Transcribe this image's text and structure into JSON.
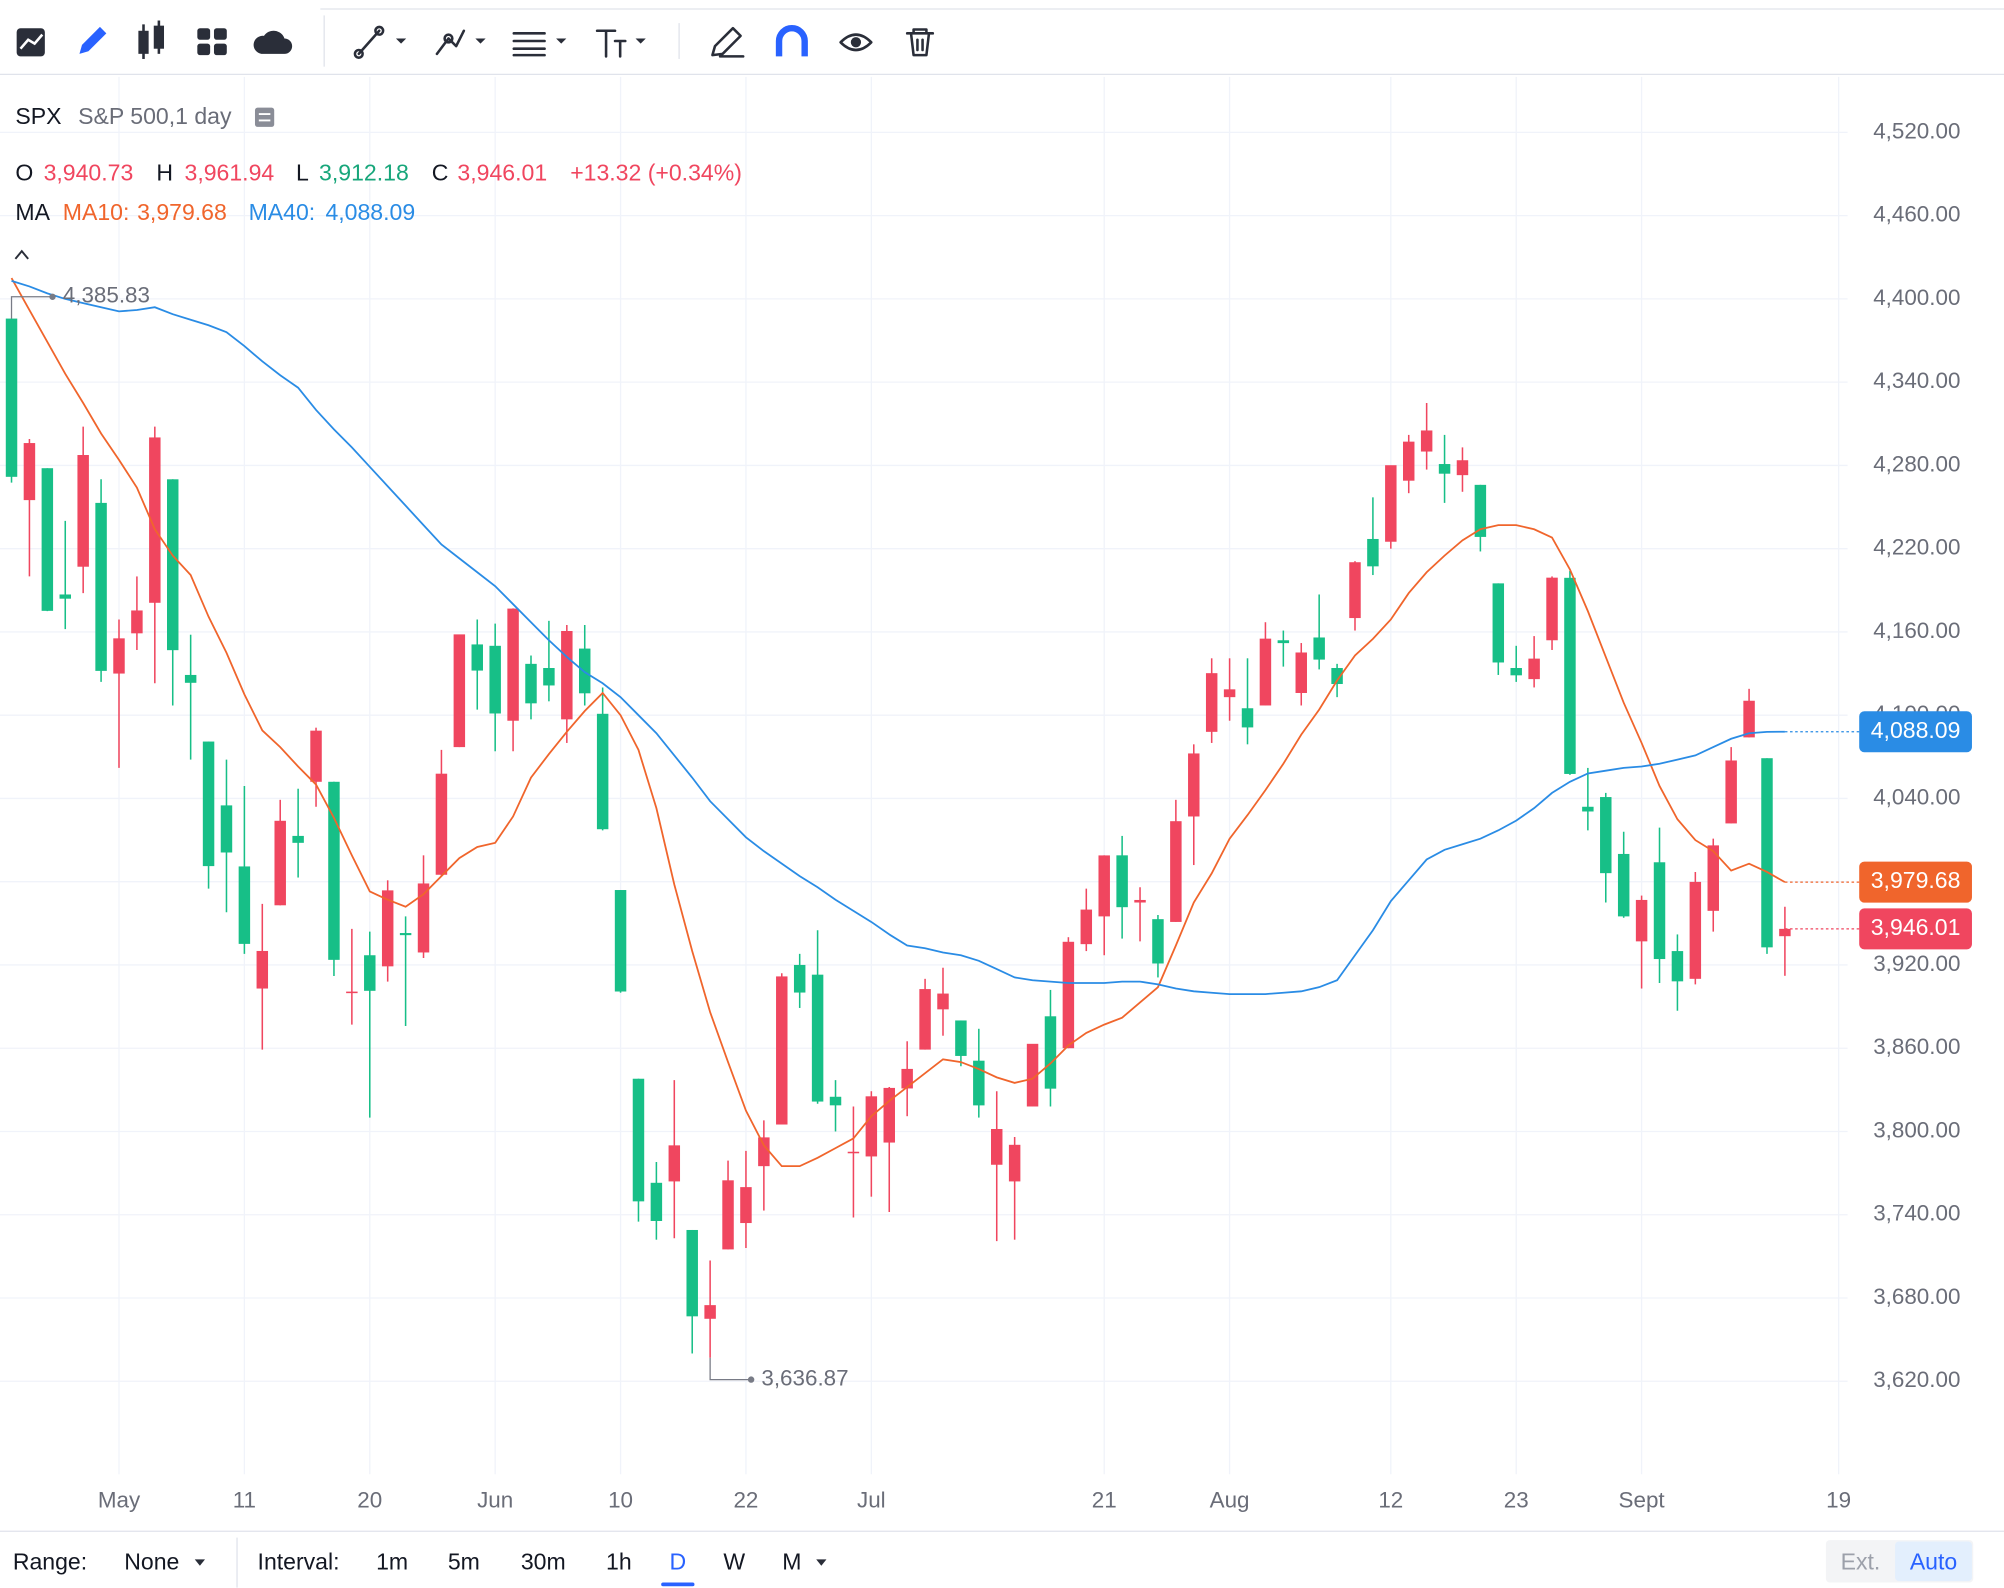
{
  "chart_data": {
    "type": "candlestick",
    "symbol": "SPX",
    "subtitle": "S&P 500,1 day",
    "quote": [
      {
        "key": "O",
        "value": "3,940.73"
      },
      {
        "key": "H",
        "value": "3,961.94"
      },
      {
        "key": "L",
        "value": "3,912.18"
      },
      {
        "key": "C",
        "value": "3,946.01"
      }
    ],
    "change": "+13.32 (+0.34%)",
    "indicator": "MA",
    "categories": [
      null,
      null,
      null,
      null,
      null,
      null,
      "May",
      null,
      null,
      null,
      null,
      null,
      null,
      "11",
      null,
      null,
      null,
      null,
      null,
      null,
      "20",
      null,
      null,
      null,
      null,
      null,
      null,
      "Jun",
      null,
      null,
      null,
      null,
      null,
      null,
      "10",
      null,
      null,
      null,
      null,
      null,
      null,
      "22",
      null,
      null,
      null,
      null,
      null,
      null,
      "Jul",
      null,
      null,
      null,
      null,
      null,
      null,
      null,
      null,
      null,
      null,
      null,
      null,
      "21",
      null,
      null,
      null,
      null,
      null,
      null,
      "Aug",
      null,
      null,
      null,
      null,
      null,
      null,
      null,
      null,
      "12",
      null,
      null,
      null,
      null,
      null,
      null,
      "23",
      null,
      null,
      null,
      null,
      null,
      null,
      "Sept",
      null,
      null,
      null,
      null,
      null,
      null,
      null,
      null,
      null,
      null,
      "19"
    ],
    "ohlc": {
      "open": [
        4385.83,
        4255,
        4278,
        4187,
        4207,
        4253,
        4130,
        4159,
        4181,
        4270,
        4129,
        4081,
        4035,
        3991,
        3903,
        3963,
        4013,
        4052,
        4052,
        3900,
        3927,
        3919,
        3943,
        3929,
        3985,
        4077,
        4151,
        4150,
        4096,
        4137,
        4134,
        4097,
        4148,
        4101,
        3974,
        3838,
        3763,
        3764,
        3729,
        3665,
        3715,
        3734,
        3775,
        3805,
        3920,
        3913,
        3825,
        3785,
        3782,
        3792,
        3831,
        3859,
        3888,
        3880,
        3851,
        3776,
        3764,
        3818,
        3883,
        3860,
        3935,
        3955,
        3999,
        3965,
        3953,
        3951,
        4027,
        4088,
        4113,
        4105,
        4107,
        4154,
        4116,
        4156,
        4134,
        4170,
        4227,
        4225,
        4269,
        4290,
        4281,
        4273,
        4266,
        4195,
        4134,
        4126,
        4154,
        4199,
        4034,
        4041,
        4000,
        3937,
        3994,
        3930,
        3910,
        3959,
        4022,
        4084,
        4069,
        3940.73,
        null,
        null,
        null
      ],
      "high": [
        4385.83,
        4299,
        4278,
        4240,
        4308,
        4270,
        4169,
        4200,
        4308,
        4270,
        4158,
        4081,
        4068,
        4049,
        3964,
        4039,
        4047,
        4091,
        4052,
        3946,
        3944,
        3981,
        3955,
        3999,
        4075,
        4158,
        4169,
        4166,
        4177,
        4143,
        4168,
        4165,
        4165,
        4120,
        3974,
        3838,
        3778,
        3837,
        3729,
        3707,
        3779,
        3786,
        3808,
        3914,
        3928,
        3945,
        3837,
        3818,
        3829,
        3832,
        3865,
        3910,
        3918,
        3880,
        3874,
        3829,
        3796,
        3863,
        3902,
        3940,
        3975,
        3999,
        4013,
        3976,
        3956,
        4039,
        4079,
        4141,
        4141,
        4141,
        4167,
        4161,
        4152,
        4187,
        4137,
        4211,
        4257,
        4280,
        4302,
        4325,
        4302,
        4293,
        4266,
        4195,
        4150,
        4157,
        4200,
        4204,
        4062,
        4044,
        4016,
        3970,
        4019,
        3942,
        3987,
        4011,
        4077,
        4119,
        4069,
        3961.94,
        null,
        null,
        null
      ],
      "low": [
        4267.62,
        4200,
        4175,
        4162,
        4188,
        4124,
        4062,
        4147,
        4123,
        4107,
        4068,
        3975,
        3958,
        3928,
        3859,
        3963,
        3983,
        4034,
        3912,
        3877,
        3810,
        3908,
        3876,
        3925,
        3984,
        4077,
        4104,
        4074,
        4074,
        4097,
        4110,
        4080,
        4107,
        4017,
        3900,
        3735,
        3722,
        3723,
        3640,
        3636.87,
        3715,
        3716,
        3743,
        3805,
        3889,
        3820,
        3800,
        3738,
        3753,
        3742,
        3811,
        3859,
        3869,
        3847,
        3810,
        3721,
        3722,
        3818,
        3818,
        3860,
        3930,
        3927,
        3939,
        3937,
        3911,
        3951,
        3992,
        4080,
        4096,
        4079,
        4107,
        4135,
        4107,
        4133,
        4113,
        4161,
        4201,
        4220,
        4260,
        4277,
        4253,
        4261,
        4218,
        4129,
        4124,
        4120,
        4147,
        4057,
        4017,
        3965,
        3954,
        3903,
        3907,
        3887,
        3906,
        3944,
        4022,
        4084,
        3928,
        3912.18,
        null,
        null,
        null
      ],
      "close": [
        4271.78,
        4296.12,
        4175.2,
        4183.96,
        4287.5,
        4131.93,
        4155.38,
        4175.48,
        4300.17,
        4146.87,
        4123.34,
        3991.24,
        4001.05,
        3935.18,
        3930.08,
        4023.89,
        4008.01,
        4088.85,
        3923.68,
        3900.79,
        3901.36,
        3973.75,
        3941.48,
        3978.73,
        4057.84,
        4158.24,
        4132.15,
        4101.23,
        4176.82,
        4108.54,
        4121.43,
        4160.68,
        4115.77,
        4017.82,
        3900.86,
        3749.63,
        3735.48,
        3789.99,
        3666.77,
        3674.84,
        3764.79,
        3759.89,
        3795.73,
        3911.74,
        3900.11,
        3821.55,
        3818.83,
        3785.38,
        3825.33,
        3831.39,
        3845.08,
        3902.62,
        3899.38,
        3854.43,
        3818.8,
        3801.78,
        3790.38,
        3863.16,
        3830.85,
        3936.69,
        3959.9,
        3998.95,
        3961.63,
        3966.84,
        3921.05,
        4023.61,
        4072.43,
        4130.29,
        4118.63,
        4091.19,
        4155.17,
        4151.94,
        4145.19,
        4140.06,
        4122.47,
        4210.24,
        4207.27,
        4280.15,
        4297.14,
        4305.2,
        4274.04,
        4283.74,
        4228.48,
        4137.99,
        4128.73,
        4140.77,
        4199.12,
        4057.66,
        4030.61,
        3986.16,
        3955,
        3966.85,
        3924.26,
        3908.19,
        3979.87,
        4006.18,
        4067.36,
        4110.41,
        3932.69,
        3946.01,
        null,
        null,
        null
      ]
    },
    "up_color": "#f0465f",
    "down_color": "#17bf87",
    "series": [
      {
        "name": "MA10:",
        "color": "#f0652c",
        "last_label": "3,979.68",
        "values": [
          4415,
          4392,
          4369,
          4346,
          4325,
          4303,
          4284,
          4264,
          4234,
          4215,
          4201,
          4171,
          4145,
          4115,
          4089,
          4077,
          4063,
          4050,
          4026,
          3999,
          3973,
          3967,
          3962,
          3971,
          3984,
          3997,
          4005,
          4008,
          4027,
          4055,
          4072,
          4088,
          4103,
          4116,
          4100,
          4075,
          4033,
          3978,
          3930,
          3886,
          3850,
          3815,
          3790,
          3775,
          3775,
          3781,
          3788,
          3795,
          3811,
          3822,
          3832,
          3842,
          3852,
          3850,
          3845,
          3839,
          3835,
          3838,
          3849,
          3862,
          3871,
          3877,
          3882,
          3893,
          3904,
          3934,
          3965,
          3986,
          4011,
          4028,
          4046,
          4065,
          4086,
          4104,
          4125,
          4143,
          4155,
          4169,
          4188,
          4203,
          4215,
          4226,
          4234,
          4237,
          4237,
          4234,
          4228,
          4205,
          4175,
          4142,
          4109,
          4080,
          4049,
          4025,
          4010,
          4002,
          3988,
          3993,
          3987,
          3979.68,
          null,
          null,
          null
        ]
      },
      {
        "name": "MA40:",
        "color": "#2a8ce5",
        "last_label": "4,088.09",
        "values": [
          4413,
          4409,
          4404,
          4400,
          4397,
          4394,
          4391,
          4392,
          4394,
          4389,
          4385,
          4381,
          4376,
          4366,
          4355,
          4345,
          4336,
          4320,
          4306,
          4293,
          4279,
          4265,
          4251,
          4237,
          4223,
          4213,
          4203,
          4193,
          4180,
          4167,
          4154,
          4142,
          4131,
          4123,
          4113,
          4100,
          4087,
          4071,
          4055,
          4038,
          4025,
          4012,
          4002,
          3993,
          3984,
          3976,
          3967,
          3959,
          3951,
          3942,
          3934,
          3932,
          3929,
          3927,
          3923,
          3917,
          3911,
          3909,
          3908,
          3907,
          3907,
          3907,
          3908,
          3908,
          3906,
          3903,
          3901,
          3900,
          3899,
          3899,
          3899,
          3900,
          3901,
          3904,
          3909,
          3927,
          3945,
          3966,
          3981,
          3996,
          4003,
          4007,
          4011,
          4017,
          4024,
          4033,
          4044,
          4052,
          4058,
          4060,
          4062,
          4063,
          4065,
          4068,
          4071,
          4077,
          4083,
          4087,
          4088,
          4088.09,
          null,
          null,
          null
        ]
      }
    ],
    "last_price": {
      "value": 3946.01,
      "label": "3,946.01"
    },
    "high_marker": {
      "value": 4385.83,
      "label": "4,385.83"
    },
    "low_marker": {
      "value": 3636.87,
      "label": "3,636.87"
    },
    "ylim": [
      3553,
      4560
    ],
    "yticks": [
      {
        "value": 3620,
        "label": "3,620.00"
      },
      {
        "value": 3680,
        "label": "3,680.00"
      },
      {
        "value": 3740,
        "label": "3,740.00"
      },
      {
        "value": 3800,
        "label": "3,800.00"
      },
      {
        "value": 3860,
        "label": "3,860.00"
      },
      {
        "value": 3920,
        "label": "3,920.00"
      },
      {
        "value": 3980,
        "label": "3,980.00"
      },
      {
        "value": 4040,
        "label": "4,040.00"
      },
      {
        "value": 4100,
        "label": "4,100.00"
      },
      {
        "value": 4160,
        "label": "4,160.00"
      },
      {
        "value": 4220,
        "label": "4,220.00"
      },
      {
        "value": 4280,
        "label": "4,280.00"
      },
      {
        "value": 4340,
        "label": "4,340.00"
      },
      {
        "value": 4400,
        "label": "4,400.00"
      },
      {
        "value": 4460,
        "label": "4,460.00"
      },
      {
        "value": 4520,
        "label": "4,520.00"
      }
    ],
    "grid": true
  },
  "bottom_bar": {
    "range_label": "Range:",
    "range_value": "None",
    "interval_label": "Interval:",
    "intervals": [
      "1m",
      "5m",
      "30m",
      "1h",
      "D",
      "W",
      "M"
    ],
    "active_interval": 4,
    "modes": [
      "Ext.",
      "Auto"
    ]
  }
}
